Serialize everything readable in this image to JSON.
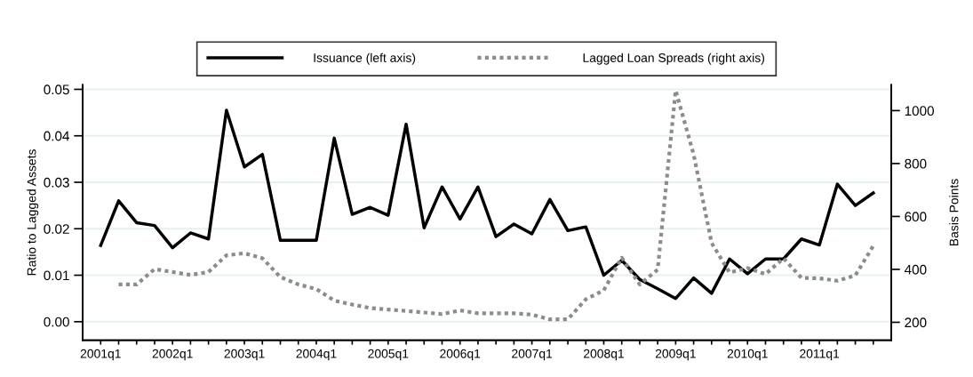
{
  "chart_data": {
    "type": "line",
    "categories": [
      "2001q1",
      null,
      null,
      null,
      "2002q1",
      null,
      null,
      null,
      "2003q1",
      null,
      null,
      null,
      "2004q1",
      null,
      null,
      null,
      "2005q1",
      null,
      null,
      null,
      "2006q1",
      null,
      null,
      null,
      "2007q1",
      null,
      null,
      null,
      "2008q1",
      null,
      null,
      null,
      "2009q1",
      null,
      null,
      null,
      "2010q1",
      null,
      null,
      null,
      "2011q1",
      null,
      null,
      null
    ],
    "series": [
      {
        "name": "Issuance (left axis)",
        "color": "#000000",
        "line_style": "solid",
        "values": [
          0.0164,
          0.026,
          0.0213,
          0.0207,
          0.0159,
          0.0191,
          0.0178,
          0.0455,
          0.0333,
          0.036,
          0.0175,
          0.0175,
          0.0175,
          0.0395,
          0.0231,
          0.0246,
          0.0229,
          0.0425,
          0.0202,
          0.029,
          0.0221,
          0.029,
          0.0183,
          0.021,
          0.0189,
          0.0263,
          0.0196,
          0.0204,
          0.01,
          0.0132,
          0.0091,
          0.0071,
          0.005,
          0.0094,
          0.0061,
          0.0135,
          0.0103,
          0.0135,
          0.0135,
          0.0178,
          0.0165,
          0.0296,
          0.025,
          0.0277
        ]
      },
      {
        "name": "Lagged Loan Spreads (right axis)",
        "color": "#8c8c8c",
        "line_style": "dotted",
        "axis": "y2",
        "values": [
          null,
          343,
          343,
          401,
          390,
          379,
          390,
          453,
          461,
          442,
          371,
          343,
          326,
          282,
          267,
          254,
          248,
          243,
          237,
          231,
          245,
          234,
          234,
          234,
          229,
          211,
          211,
          287,
          321,
          444,
          343,
          399,
          1076,
          835,
          500,
          388,
          405,
          382,
          442,
          368,
          366,
          357,
          377,
          489
        ]
      }
    ],
    "ylabel": "Ratio to Lagged Assets",
    "y2label": "Basis Points",
    "ylim": [
      -0.004,
      0.051
    ],
    "yticks": [
      {
        "value": 0,
        "label": "0.00"
      },
      {
        "value": 0.01,
        "label": "0.01"
      },
      {
        "value": 0.02,
        "label": "0.02"
      },
      {
        "value": 0.03,
        "label": "0.03"
      },
      {
        "value": 0.04,
        "label": "0.04"
      },
      {
        "value": 0.05,
        "label": "0.05"
      }
    ],
    "y2lim": [
      132,
      1098
    ],
    "y2ticks": [
      200,
      400,
      600,
      800,
      1000
    ],
    "grid": "y",
    "legend": "top"
  }
}
